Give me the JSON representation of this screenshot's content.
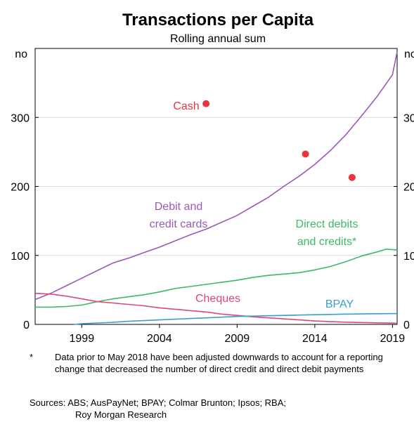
{
  "chart_data": {
    "type": "line",
    "title": "Transactions per Capita",
    "subtitle": "Rolling annual sum",
    "unit_left": "no",
    "unit_right": "no",
    "xlim": [
      1996,
      2019.3
    ],
    "ylim": [
      0,
      400
    ],
    "x_ticks": [
      1999,
      2004,
      2009,
      2014,
      2019
    ],
    "x_tick_labels": [
      "1999",
      "2004",
      "2009",
      "2014",
      "2019"
    ],
    "y_ticks": [
      0,
      100,
      200,
      300
    ],
    "y_tick_labels_left": [
      "0",
      "100",
      "200",
      "300"
    ],
    "y_tick_labels_right": [
      "0",
      "100",
      "200",
      "300"
    ],
    "grid": true,
    "series": [
      {
        "name": "Debit and credit cards",
        "label_lines": [
          "Debit and",
          "credit cards"
        ],
        "color": "#9b59b6",
        "type": "line",
        "points": [
          [
            1996.0,
            36
          ],
          [
            1997,
            45
          ],
          [
            1998,
            56
          ],
          [
            1999,
            67
          ],
          [
            2000,
            78
          ],
          [
            2001,
            89
          ],
          [
            2002,
            96
          ],
          [
            2003,
            104
          ],
          [
            2004,
            112
          ],
          [
            2005,
            121
          ],
          [
            2006,
            130
          ],
          [
            2007,
            138
          ],
          [
            2008,
            148
          ],
          [
            2009,
            158
          ],
          [
            2010,
            171
          ],
          [
            2011,
            184
          ],
          [
            2012,
            200
          ],
          [
            2013,
            215
          ],
          [
            2014,
            232
          ],
          [
            2015,
            252
          ],
          [
            2016,
            275
          ],
          [
            2017,
            302
          ],
          [
            2018,
            330
          ],
          [
            2019.0,
            362
          ],
          [
            2019.3,
            395
          ]
        ]
      },
      {
        "name": "Direct debits and credits*",
        "label_lines": [
          "Direct debits",
          "and credits*"
        ],
        "color": "#3db86a",
        "type": "line",
        "points": [
          [
            1996.0,
            25
          ],
          [
            1997,
            25
          ],
          [
            1998,
            26
          ],
          [
            1999,
            28
          ],
          [
            2000,
            33
          ],
          [
            2001,
            37
          ],
          [
            2002,
            40
          ],
          [
            2003,
            43
          ],
          [
            2004,
            47
          ],
          [
            2005,
            52
          ],
          [
            2006,
            55
          ],
          [
            2007,
            58
          ],
          [
            2008,
            61
          ],
          [
            2009,
            64
          ],
          [
            2010,
            68
          ],
          [
            2011,
            71
          ],
          [
            2012,
            73
          ],
          [
            2013,
            75
          ],
          [
            2014,
            79
          ],
          [
            2015,
            84
          ],
          [
            2016,
            91
          ],
          [
            2017,
            99
          ],
          [
            2018,
            105
          ],
          [
            2018.6,
            109
          ],
          [
            2019.3,
            108
          ]
        ]
      },
      {
        "name": "Cheques",
        "label_lines": [
          "Cheques"
        ],
        "color": "#e0457b",
        "type": "line",
        "points": [
          [
            1996.0,
            45
          ],
          [
            1997,
            44
          ],
          [
            1998,
            41
          ],
          [
            1999,
            37
          ],
          [
            2000,
            33
          ],
          [
            2001,
            31
          ],
          [
            2002,
            29
          ],
          [
            2003,
            27
          ],
          [
            2004,
            24
          ],
          [
            2005,
            22
          ],
          [
            2006,
            20
          ],
          [
            2007,
            18
          ],
          [
            2008,
            15
          ],
          [
            2009,
            13
          ],
          [
            2010,
            11
          ],
          [
            2011,
            9.5
          ],
          [
            2012,
            8
          ],
          [
            2013,
            6.5
          ],
          [
            2014,
            5
          ],
          [
            2015,
            4
          ],
          [
            2016,
            3.3
          ],
          [
            2017,
            2.7
          ],
          [
            2018,
            2.2
          ],
          [
            2019.0,
            1.8
          ],
          [
            2019.3,
            1.6
          ]
        ]
      },
      {
        "name": "BPAY",
        "label_lines": [
          "BPAY"
        ],
        "color": "#3aa0c8",
        "type": "line",
        "points": [
          [
            1998.5,
            0
          ],
          [
            1999,
            1
          ],
          [
            2000,
            2
          ],
          [
            2001,
            3
          ],
          [
            2002,
            4.5
          ],
          [
            2003,
            5.5
          ],
          [
            2004,
            6.5
          ],
          [
            2005,
            7.5
          ],
          [
            2006,
            8.5
          ],
          [
            2007,
            9.5
          ],
          [
            2008,
            10.5
          ],
          [
            2009,
            11.5
          ],
          [
            2010,
            12
          ],
          [
            2011,
            12.5
          ],
          [
            2012,
            13
          ],
          [
            2013,
            13.5
          ],
          [
            2014,
            14
          ],
          [
            2015,
            14.5
          ],
          [
            2016,
            15
          ],
          [
            2017,
            15.2
          ],
          [
            2018,
            15.5
          ],
          [
            2019.3,
            15.7
          ]
        ]
      },
      {
        "name": "Cash",
        "label_lines": [
          "Cash"
        ],
        "color": "#e8343f",
        "type": "scatter",
        "points": [
          [
            2007,
            320
          ],
          [
            2013.4,
            247
          ],
          [
            2016.4,
            213
          ]
        ]
      }
    ]
  },
  "footnote": {
    "marker": "*",
    "text": "Data prior to May 2018 have been adjusted downwards to account for a reporting change that decreased the number of direct credit and direct debit payments"
  },
  "sources": {
    "line1": "Sources: ABS; AusPayNet; BPAY; Colmar Brunton; Ipsos; RBA;",
    "line2": "Roy Morgan Research"
  }
}
